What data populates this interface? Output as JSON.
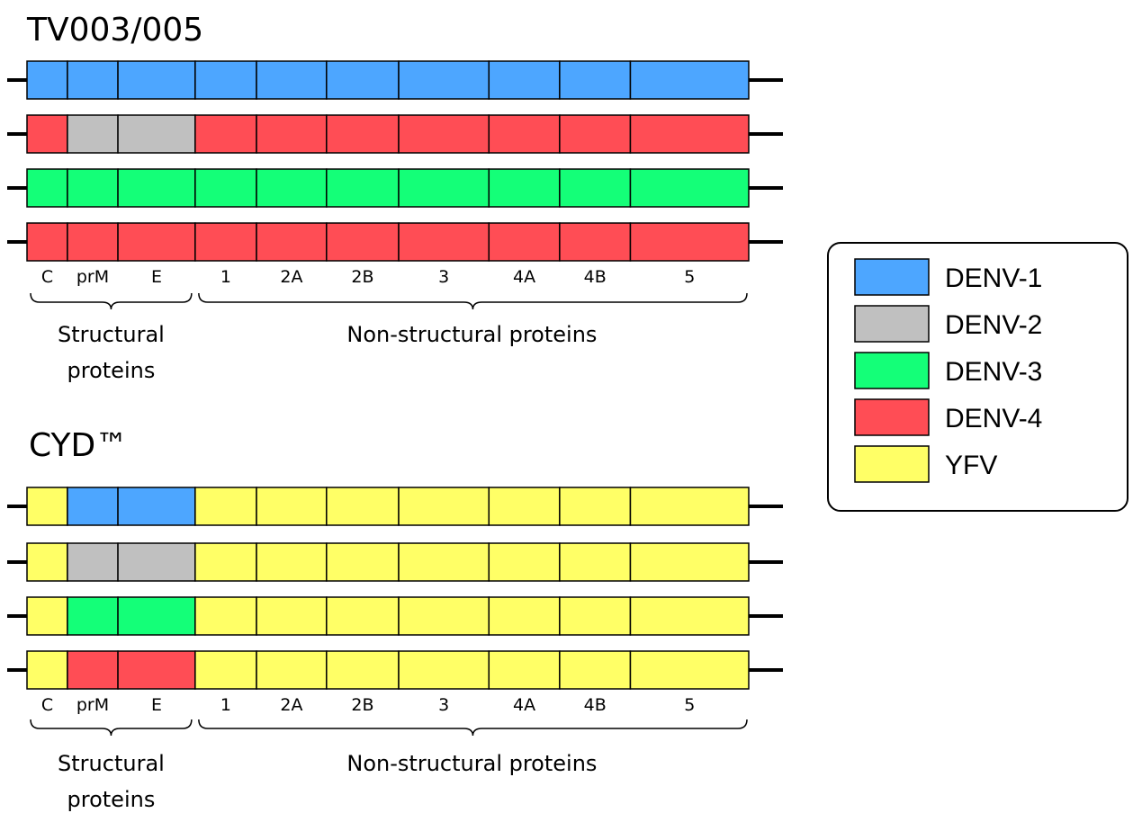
{
  "palette": {
    "DENV-1": "#4da6ff",
    "DENV-2": "#c0c0c0",
    "DENV-3": "#14ff78",
    "DENV-4": "#ff4d55",
    "YFV": "#ffff66"
  },
  "protein_labels": [
    "C",
    "prM",
    "E",
    "1",
    "2A",
    "2B",
    "3",
    "4A",
    "4B",
    "5"
  ],
  "group_labels": {
    "structural": [
      "Structural",
      "proteins"
    ],
    "non_structural": "Non-structural proteins"
  },
  "sections": [
    {
      "title": "TV003/005",
      "genomes": [
        [
          "DENV-1",
          "DENV-1",
          "DENV-1",
          "DENV-1",
          "DENV-1",
          "DENV-1",
          "DENV-1",
          "DENV-1",
          "DENV-1",
          "DENV-1"
        ],
        [
          "DENV-4",
          "DENV-2",
          "DENV-2",
          "DENV-4",
          "DENV-4",
          "DENV-4",
          "DENV-4",
          "DENV-4",
          "DENV-4",
          "DENV-4"
        ],
        [
          "DENV-3",
          "DENV-3",
          "DENV-3",
          "DENV-3",
          "DENV-3",
          "DENV-3",
          "DENV-3",
          "DENV-3",
          "DENV-3",
          "DENV-3"
        ],
        [
          "DENV-4",
          "DENV-4",
          "DENV-4",
          "DENV-4",
          "DENV-4",
          "DENV-4",
          "DENV-4",
          "DENV-4",
          "DENV-4",
          "DENV-4"
        ]
      ]
    },
    {
      "title": "CYD™",
      "genomes": [
        [
          "YFV",
          "DENV-1",
          "DENV-1",
          "YFV",
          "YFV",
          "YFV",
          "YFV",
          "YFV",
          "YFV",
          "YFV"
        ],
        [
          "YFV",
          "DENV-2",
          "DENV-2",
          "YFV",
          "YFV",
          "YFV",
          "YFV",
          "YFV",
          "YFV",
          "YFV"
        ],
        [
          "YFV",
          "DENV-3",
          "DENV-3",
          "YFV",
          "YFV",
          "YFV",
          "YFV",
          "YFV",
          "YFV",
          "YFV"
        ],
        [
          "YFV",
          "DENV-4",
          "DENV-4",
          "YFV",
          "YFV",
          "YFV",
          "YFV",
          "YFV",
          "YFV",
          "YFV"
        ]
      ]
    }
  ],
  "legend": [
    "DENV-1",
    "DENV-2",
    "DENV-3",
    "DENV-4",
    "YFV"
  ]
}
